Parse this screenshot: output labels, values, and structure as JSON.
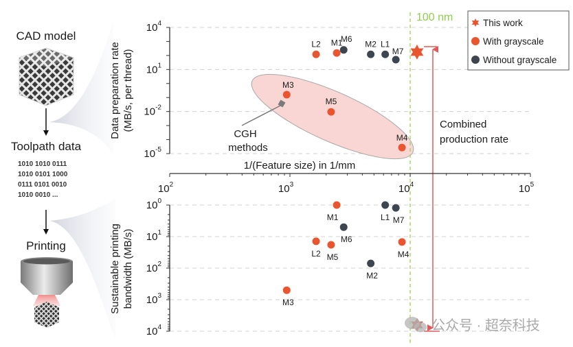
{
  "workflow": {
    "steps": [
      {
        "label": "CAD model",
        "icon": "lattice-cube-icon"
      },
      {
        "label": "Toolpath data",
        "icon": "binary-data-icon"
      },
      {
        "label": "Printing",
        "icon": "print-nozzle-icon"
      }
    ],
    "binary_lines": [
      "1010  1010  0111",
      "1010  0101  1000",
      "0111  0101  0010",
      "1010  0010  ..."
    ]
  },
  "watermark": "公众号 · 超奈科技",
  "colors": {
    "with_grayscale": "#e8552f",
    "without_grayscale": "#3d4550",
    "this_work": "#e8552f",
    "ellipse_fill": "#f9d6d3",
    "ellipse_stroke": "#a9a9a9",
    "nm_line": "#9bd35a",
    "combined_arrow": "#e05a5a",
    "grid": "#d0d0d0",
    "axis": "#333333"
  },
  "chart_data": [
    {
      "type": "scatter",
      "title": "",
      "xlabel": "1/(Feature size) in 1/mm",
      "ylabel": "Data preparation rate (MB/s, per thread)",
      "xscale": "log",
      "yscale": "log",
      "xlim": [
        100,
        100000
      ],
      "ylim": [
        1e-05,
        10000
      ],
      "x_ticks": [
        {
          "base": "10",
          "exp": "2"
        },
        {
          "base": "10",
          "exp": "3"
        },
        {
          "base": "10",
          "exp": "4"
        },
        {
          "base": "10",
          "exp": "5"
        }
      ],
      "y_ticks": [
        {
          "base": "10",
          "exp": "4",
          "value": 10000
        },
        {
          "base": "10",
          "exp": "1",
          "value": 10
        },
        {
          "base": "10",
          "exp": "-2",
          "value": 0.01
        },
        {
          "base": "10",
          "exp": "-5",
          "value": 1e-05
        }
      ],
      "grid": "horizontal dashed",
      "series": [
        {
          "name": "With grayscale",
          "marker": "circle",
          "points": [
            {
              "label": "L2",
              "x": 1650,
              "y": 120
            },
            {
              "label": "M1",
              "x": 2450,
              "y": 150
            },
            {
              "label": "M3",
              "x": 940,
              "y": 0.16
            },
            {
              "label": "M5",
              "x": 2200,
              "y": 0.0095
            },
            {
              "label": "M4",
              "x": 8550,
              "y": 2.7e-05
            }
          ]
        },
        {
          "name": "Without grayscale",
          "marker": "circle",
          "points": [
            {
              "label": "M6",
              "x": 2800,
              "y": 250
            },
            {
              "label": "M2",
              "x": 4700,
              "y": 120
            },
            {
              "label": "L1",
              "x": 6200,
              "y": 120
            },
            {
              "label": "M7",
              "x": 7600,
              "y": 50
            }
          ]
        },
        {
          "name": "This work",
          "marker": "star",
          "points": [
            {
              "label": "",
              "x": 11400,
              "y": 175
            }
          ]
        }
      ],
      "annotations": [
        {
          "text": "CGH methods",
          "kind": "ellipse-group",
          "members": [
            "M3",
            "M5",
            "M4"
          ]
        },
        {
          "text": "100 nm",
          "kind": "vertical-dashed-line",
          "x": 10000
        },
        {
          "text": "Combined production rate",
          "kind": "double-bracket-arrow"
        }
      ]
    },
    {
      "type": "scatter",
      "title": "",
      "xlabel": "1/(Feature size) in 1/mm",
      "ylabel": "Sustainable printing bandwidth (MB/s)",
      "xscale": "log",
      "yscale": "log (inverted labels as printed)",
      "xlim": [
        100,
        100000
      ],
      "ylim_exponent_as_printed": [
        0,
        4
      ],
      "y_ticks": [
        {
          "base": "10",
          "exp": "0",
          "pos": 0
        },
        {
          "base": "10",
          "exp": "1",
          "pos": 1
        },
        {
          "base": "10",
          "exp": "2",
          "pos": 2
        },
        {
          "base": "10",
          "exp": "3",
          "pos": 3
        },
        {
          "base": "10",
          "exp": "4",
          "pos": 4
        }
      ],
      "grid": "horizontal dashed",
      "series": [
        {
          "name": "With grayscale",
          "marker": "circle",
          "points": [
            {
              "label": "M1",
              "x": 2450,
              "y_exp": 0.0
            },
            {
              "label": "L2",
              "x": 1650,
              "y_exp": 1.15
            },
            {
              "label": "M5",
              "x": 2200,
              "y_exp": 1.26
            },
            {
              "label": "M4",
              "x": 8550,
              "y_exp": 1.17
            },
            {
              "label": "M3",
              "x": 940,
              "y_exp": 2.7
            }
          ]
        },
        {
          "name": "Without grayscale",
          "marker": "circle",
          "points": [
            {
              "label": "L1",
              "x": 6200,
              "y_exp": 0.0
            },
            {
              "label": "M7",
              "x": 7600,
              "y_exp": 0.09
            },
            {
              "label": "M6",
              "x": 2800,
              "y_exp": 0.7
            },
            {
              "label": "M2",
              "x": 4700,
              "y_exp": 1.85
            }
          ]
        },
        {
          "name": "This work",
          "marker": "star",
          "points": [
            {
              "label": "",
              "x": 11400,
              "y_exp": 3.8
            }
          ]
        }
      ]
    }
  ],
  "legend": {
    "position": "top-right",
    "entries": [
      {
        "label": "This work",
        "marker": "star"
      },
      {
        "label": "With grayscale",
        "marker": "circle"
      },
      {
        "label": "Without grayscale",
        "marker": "circle"
      }
    ]
  },
  "labels": {
    "cgh_line1": "CGH",
    "cgh_line2": "methods",
    "combined_line1": "Combined",
    "combined_line2": "production rate",
    "nm_line": "100 nm",
    "upper_ylabel_line1": "Data preparation rate",
    "upper_ylabel_line2": "(MB/s, per thread)",
    "lower_ylabel_line1": "Sustainable printing",
    "lower_ylabel_line2": "bandwidth (MB/s)"
  }
}
